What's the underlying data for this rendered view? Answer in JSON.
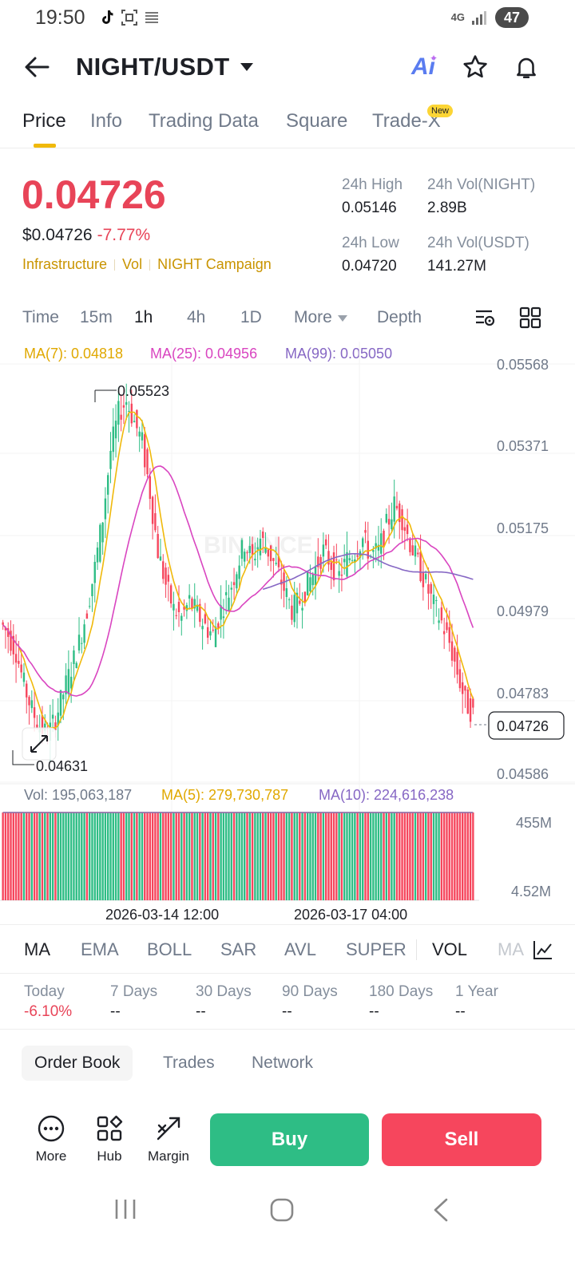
{
  "status_bar": {
    "time": "19:50",
    "network": "4G",
    "battery": "47"
  },
  "header": {
    "pair": "NIGHT/USDT",
    "ai_label": "Ai"
  },
  "tabs": [
    {
      "label": "Price"
    },
    {
      "label": "Info"
    },
    {
      "label": "Trading Data"
    },
    {
      "label": "Square"
    },
    {
      "label": "Trade-X"
    }
  ],
  "new_badge": "New",
  "price": {
    "last": "0.04726",
    "usd": "$0.04726",
    "change_pct": "-7.77%"
  },
  "tags": [
    "Infrastructure",
    "Vol",
    "NIGHT Campaign"
  ],
  "stats": {
    "high_label": "24h High",
    "high_value": "0.05146",
    "vol_night_label": "24h Vol(NIGHT)",
    "vol_night_value": "2.89B",
    "low_label": "24h Low",
    "low_value": "0.04720",
    "vol_usdt_label": "24h Vol(USDT)",
    "vol_usdt_value": "141.27M"
  },
  "timeframes": [
    "Time",
    "15m",
    "1h",
    "4h",
    "1D",
    "More",
    "Depth"
  ],
  "ma_legend": {
    "ma7": "MA(7): 0.04818",
    "ma25": "MA(25): 0.04956",
    "ma99": "MA(99): 0.05050"
  },
  "vol_legend": {
    "vol": "Vol: 195,063,187",
    "ma5": "MA(5): 279,730,787",
    "ma10": "MA(10): 224,616,238"
  },
  "watermark": "BINANCE",
  "colors": {
    "up": "#2ebd85",
    "down": "#f6465d",
    "ma7": "#f0b90b",
    "ma25": "#d945c0",
    "ma99": "#8667c4",
    "accent": "#f0b90b"
  },
  "chart_data": {
    "type": "candlestick",
    "y_axis_labels": [
      "0.05568",
      "0.05371",
      "0.05175",
      "0.04979",
      "0.04783",
      "0.04586"
    ],
    "ylim": [
      0.04586,
      0.05568
    ],
    "current_price_label": "0.04726",
    "high_marker": "0.05523",
    "low_marker": "0.04631",
    "x_axis_labels": [
      "2026-03-14 12:00",
      "2026-03-17 04:00"
    ],
    "volume_axis_labels": [
      "455M",
      "4.52M"
    ],
    "close_series": [
      0.0492,
      0.0488,
      0.048,
      0.0474,
      0.047,
      0.0468,
      0.0472,
      0.0478,
      0.0484,
      0.049,
      0.0498,
      0.0508,
      0.052,
      0.0536,
      0.0545,
      0.0548,
      0.0543,
      0.0538,
      0.0526,
      0.0512,
      0.0504,
      0.0498,
      0.0496,
      0.05,
      0.0497,
      0.0494,
      0.0492,
      0.0498,
      0.0502,
      0.0508,
      0.0514,
      0.051,
      0.0515,
      0.0512,
      0.0508,
      0.0503,
      0.0498,
      0.05,
      0.0504,
      0.0508,
      0.0512,
      0.0509,
      0.0506,
      0.051,
      0.0512,
      0.0515,
      0.0511,
      0.0512,
      0.0518,
      0.0523,
      0.052,
      0.0514,
      0.0509,
      0.0504,
      0.0499,
      0.0495,
      0.049,
      0.0483,
      0.0476,
      0.0473
    ]
  },
  "indicators": [
    "MA",
    "EMA",
    "BOLL",
    "SAR",
    "AVL",
    "SUPER",
    "VOL",
    "MA"
  ],
  "periods": [
    {
      "label": "Today",
      "value": "-6.10%"
    },
    {
      "label": "7 Days",
      "value": "--"
    },
    {
      "label": "30 Days",
      "value": "--"
    },
    {
      "label": "90 Days",
      "value": "--"
    },
    {
      "label": "180 Days",
      "value": "--"
    },
    {
      "label": "1 Year",
      "value": "--"
    }
  ],
  "bottom_tabs": [
    "Order Book",
    "Trades",
    "Network"
  ],
  "actions": [
    "More",
    "Hub",
    "Margin"
  ],
  "buy_label": "Buy",
  "sell_label": "Sell"
}
